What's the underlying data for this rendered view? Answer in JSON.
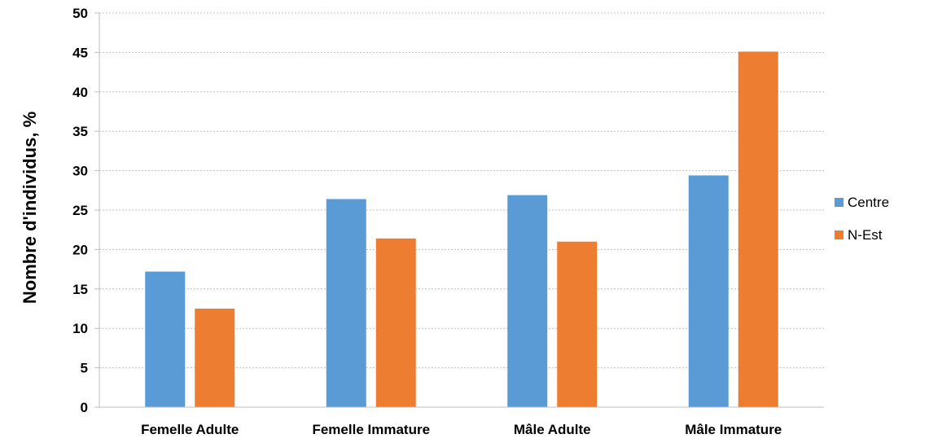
{
  "chart_data": {
    "type": "bar",
    "title": "",
    "xlabel": "",
    "ylabel": "Nombre d'individus, %",
    "ylim": [
      0,
      50
    ],
    "yticks": [
      0,
      5,
      10,
      15,
      20,
      25,
      30,
      35,
      40,
      45,
      50
    ],
    "grid": true,
    "legend_position": "right",
    "categories": [
      "Femelle Adulte",
      "Femelle Immature",
      "Mâle Adulte",
      "Mâle Immature"
    ],
    "series": [
      {
        "name": "Centre",
        "color": "#5b9bd5",
        "values": [
          17.2,
          26.4,
          26.9,
          29.4
        ]
      },
      {
        "name": "N-Est",
        "color": "#ed7d31",
        "values": [
          12.5,
          21.4,
          21.0,
          45.1
        ]
      }
    ]
  }
}
